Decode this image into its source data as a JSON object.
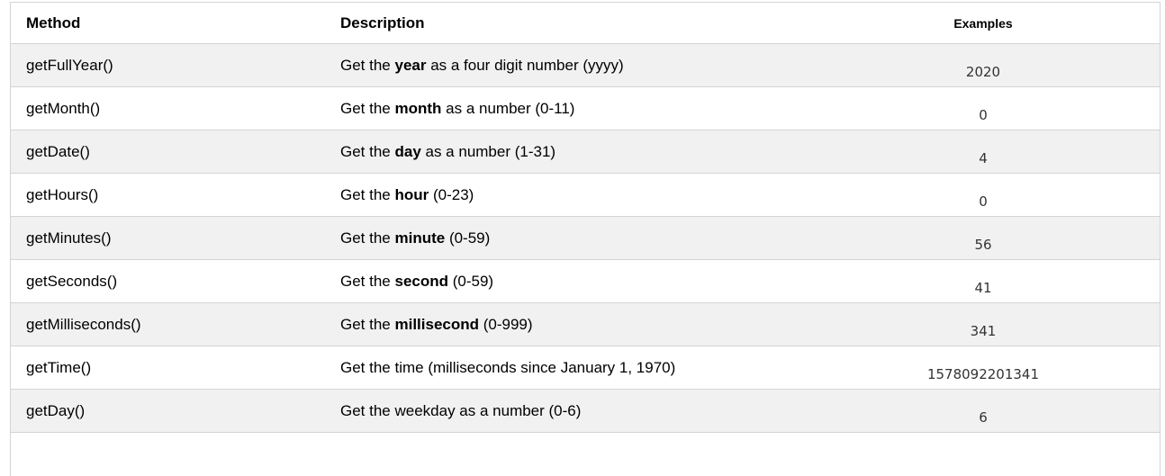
{
  "table": {
    "headers": {
      "method": "Method",
      "description": "Description",
      "examples": "Examples"
    },
    "rows": [
      {
        "method": "getFullYear()",
        "description": [
          {
            "text": "Get the "
          },
          {
            "text": "year",
            "bold": true
          },
          {
            "text": " as a four digit number (yyyy)"
          }
        ],
        "example": "2020"
      },
      {
        "method": "getMonth()",
        "description": [
          {
            "text": "Get the "
          },
          {
            "text": "month",
            "bold": true
          },
          {
            "text": " as a number (0-11)"
          }
        ],
        "example": "0"
      },
      {
        "method": "getDate()",
        "description": [
          {
            "text": "Get the "
          },
          {
            "text": "day",
            "bold": true
          },
          {
            "text": " as a number (1-31)"
          }
        ],
        "example": "4"
      },
      {
        "method": "getHours()",
        "description": [
          {
            "text": "Get the "
          },
          {
            "text": "hour",
            "bold": true
          },
          {
            "text": " (0-23)"
          }
        ],
        "example": "0"
      },
      {
        "method": "getMinutes()",
        "description": [
          {
            "text": "Get the "
          },
          {
            "text": "minute",
            "bold": true
          },
          {
            "text": " (0-59)"
          }
        ],
        "example": "56"
      },
      {
        "method": "getSeconds()",
        "description": [
          {
            "text": "Get the "
          },
          {
            "text": "second",
            "bold": true
          },
          {
            "text": " (0-59)"
          }
        ],
        "example": "41"
      },
      {
        "method": "getMilliseconds()",
        "description": [
          {
            "text": "Get the "
          },
          {
            "text": "millisecond",
            "bold": true
          },
          {
            "text": " (0-999)"
          }
        ],
        "example": "341"
      },
      {
        "method": "getTime()",
        "description": [
          {
            "text": "Get the time (milliseconds since January 1, 1970)"
          }
        ],
        "example": "1578092201341"
      },
      {
        "method": "getDay()",
        "description": [
          {
            "text": "Get the weekday as a number (0-6)"
          }
        ],
        "example": "6"
      }
    ]
  },
  "colors": {
    "row_stripe": "#f1f1f1",
    "row_plain": "#ffffff",
    "border": "#d4d4d4",
    "body_text": "#000000",
    "example_text": "#333333"
  }
}
